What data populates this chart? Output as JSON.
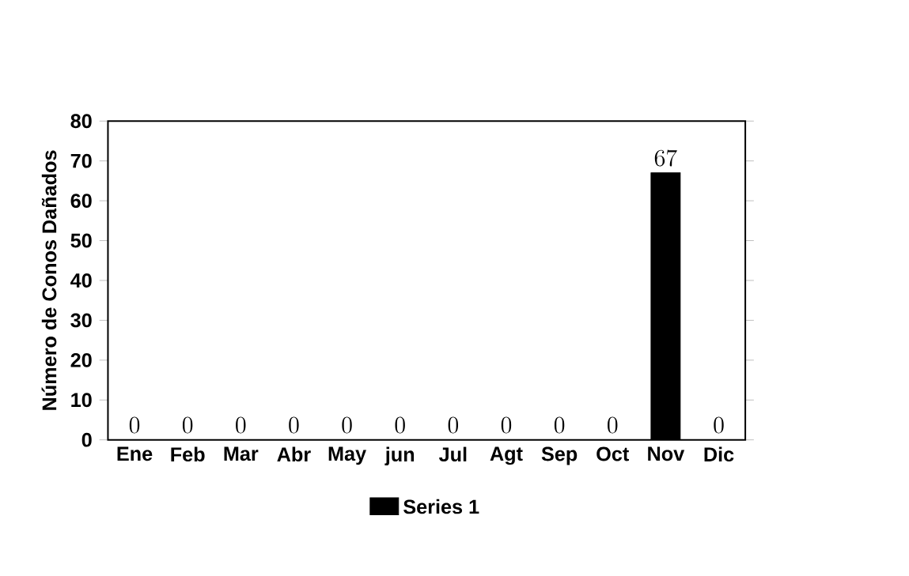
{
  "chart_data": {
    "type": "bar",
    "ylabel": "Número de Conos Dañados",
    "categories": [
      "Ene",
      "Feb",
      "Mar",
      "Abr",
      "May",
      "jun",
      "Jul",
      "Agt",
      "Sep",
      "Oct",
      "Nov",
      "Dic"
    ],
    "series": [
      {
        "name": "Series 1",
        "color": "#000000",
        "values": [
          0,
          0,
          0,
          0,
          0,
          0,
          0,
          0,
          0,
          0,
          67,
          0
        ]
      }
    ],
    "ylim": [
      0,
      80
    ],
    "yticks": [
      0,
      10,
      20,
      30,
      40,
      50,
      60,
      70,
      80
    ],
    "data_labels": true,
    "legend": "bottom"
  }
}
